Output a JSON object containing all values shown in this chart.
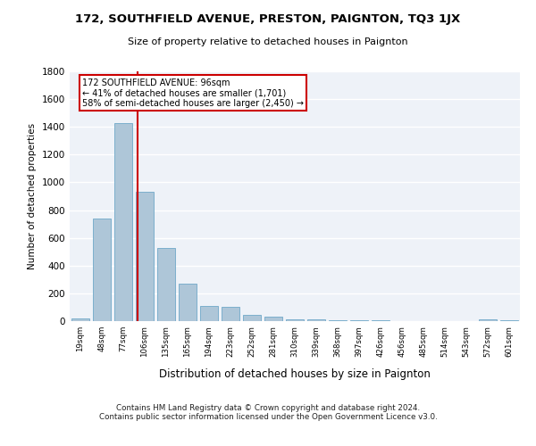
{
  "title": "172, SOUTHFIELD AVENUE, PRESTON, PAIGNTON, TQ3 1JX",
  "subtitle": "Size of property relative to detached houses in Paignton",
  "xlabel": "Distribution of detached houses by size in Paignton",
  "ylabel": "Number of detached properties",
  "footer_line1": "Contains HM Land Registry data © Crown copyright and database right 2024.",
  "footer_line2": "Contains public sector information licensed under the Open Government Licence v3.0.",
  "categories": [
    "19sqm",
    "48sqm",
    "77sqm",
    "106sqm",
    "135sqm",
    "165sqm",
    "194sqm",
    "223sqm",
    "252sqm",
    "281sqm",
    "310sqm",
    "339sqm",
    "368sqm",
    "397sqm",
    "426sqm",
    "456sqm",
    "485sqm",
    "514sqm",
    "543sqm",
    "572sqm",
    "601sqm"
  ],
  "values": [
    20,
    740,
    1430,
    930,
    530,
    270,
    110,
    100,
    45,
    30,
    15,
    10,
    8,
    5,
    5,
    3,
    2,
    2,
    1,
    10,
    5
  ],
  "bar_color": "#aec6d8",
  "bar_edge_color": "#6fa8c8",
  "bg_color": "#eef2f8",
  "grid_color": "#ffffff",
  "vline_color": "#cc0000",
  "annotation_text": "172 SOUTHFIELD AVENUE: 96sqm\n← 41% of detached houses are smaller (1,701)\n58% of semi-detached houses are larger (2,450) →",
  "annotation_box_color": "#cc0000",
  "ylim": [
    0,
    1800
  ],
  "yticks": [
    0,
    200,
    400,
    600,
    800,
    1000,
    1200,
    1400,
    1600,
    1800
  ]
}
